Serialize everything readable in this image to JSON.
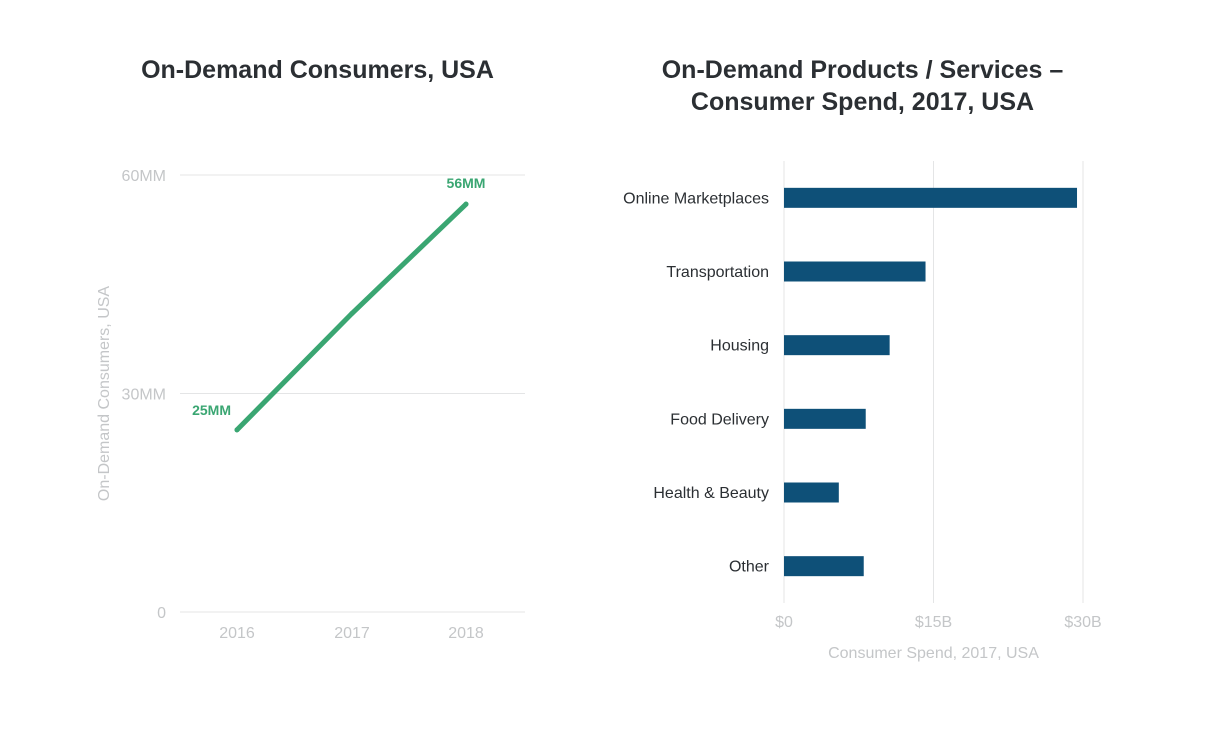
{
  "chart_data": [
    {
      "type": "line",
      "title": "On-Demand Consumers, USA",
      "ylabel": "On-Demand Consumers, USA",
      "xlabel": "",
      "x": [
        "2016",
        "2017",
        "2018"
      ],
      "series": [
        {
          "values": [
            25,
            41,
            56
          ]
        }
      ],
      "ylim": [
        0,
        60
      ],
      "y_ticks": [
        {
          "value": 0,
          "label": "0"
        },
        {
          "value": 30,
          "label": "30MM"
        },
        {
          "value": 60,
          "label": "60MM"
        }
      ],
      "data_labels": [
        {
          "index": 0,
          "label": "25MM"
        },
        {
          "index": 2,
          "label": "56MM"
        }
      ],
      "grid": true,
      "color": "#3aa672"
    },
    {
      "type": "bar",
      "orientation": "horizontal",
      "title": "On-Demand Products / Services – Consumer Spend, 2017, USA",
      "title_lines": [
        "On-Demand Products / Services –",
        "Consumer Spend, 2017, USA"
      ],
      "xlabel": "Consumer Spend, 2017, USA",
      "categories": [
        "Online Marketplaces",
        "Transportation",
        "Housing",
        "Food Delivery",
        "Health & Beauty",
        "Other"
      ],
      "values": [
        29.4,
        14.2,
        10.6,
        8.2,
        5.5,
        8.0
      ],
      "xlim": [
        0,
        30
      ],
      "x_ticks": [
        {
          "value": 0,
          "label": "$0"
        },
        {
          "value": 15,
          "label": "$15B"
        },
        {
          "value": 30,
          "label": "$30B"
        }
      ],
      "grid": true,
      "color": "#0e5078"
    }
  ]
}
